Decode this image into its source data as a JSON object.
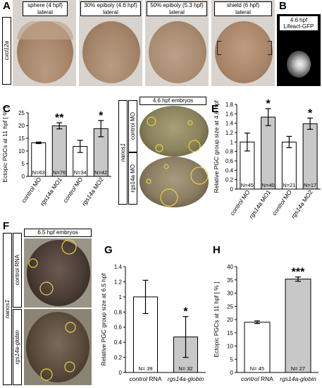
{
  "panels": {
    "A": {
      "label": "A",
      "side_label": "cxcl12a",
      "headers": [
        {
          "line1": "sphere (4 hpf)",
          "line2": "lateral"
        },
        {
          "line1": "30% epiboly (4.6 hpf)",
          "line2": "lateral"
        },
        {
          "line1": "50% epiboly (5.3 hpf)",
          "line2": "lateral"
        },
        {
          "line1": "shield (6 hpf)",
          "line2": "lateral"
        }
      ]
    },
    "B": {
      "label": "B",
      "header_line1": "4.6 hpf",
      "header_line2": "Lifeact-GFP"
    },
    "C": {
      "label": "C"
    },
    "D": {
      "label": "D",
      "header": "4.6 hpf embryos",
      "outer_label": "nanos1",
      "row_labels": [
        "control MO",
        "rgs14a MO"
      ]
    },
    "E": {
      "label": "E"
    },
    "F": {
      "label": "F",
      "header": "6.5 hpf embryos",
      "outer_label": "nanos1",
      "row_labels": [
        "control RNA",
        "rgs14a-globin"
      ]
    },
    "G": {
      "label": "G"
    },
    "H": {
      "label": "H"
    }
  },
  "colors": {
    "white_bar": "#ffffff",
    "grey_bar": "#c8c8c8",
    "circle": "#e6d23c"
  },
  "chart_data": [
    {
      "panel": "C",
      "type": "bar",
      "ylabel": "Ectopic PGCs at 11 hpf [ % ]",
      "ylim": [
        0,
        25
      ],
      "yticks": [
        0,
        5,
        10,
        15,
        20,
        25
      ],
      "categories": [
        "control MO",
        "rgs14a MO1",
        "control MO",
        "rgs14a MO2"
      ],
      "values": [
        13.2,
        19.9,
        11.8,
        18.8
      ],
      "errors": [
        0.3,
        1.2,
        2.4,
        3.2
      ],
      "fills": [
        "white",
        "grey",
        "white",
        "grey"
      ],
      "n_labels": [
        "N=63",
        "N=76",
        "N=34",
        "N=42"
      ],
      "sig": [
        "",
        "**",
        "",
        "*"
      ]
    },
    {
      "panel": "E",
      "type": "bar",
      "ylabel": "Relative PGC group size at 4.6 hpf",
      "ylim": [
        0,
        1.8
      ],
      "yticks": [
        0,
        0.2,
        0.4,
        0.6,
        0.8,
        1,
        1.2,
        1.4,
        1.6,
        1.8
      ],
      "categories": [
        "control MO",
        "rgs14a MO1",
        "control MO",
        "rgs14a MO2"
      ],
      "values": [
        1.0,
        1.53,
        1.0,
        1.39
      ],
      "errors": [
        0.19,
        0.18,
        0.12,
        0.12
      ],
      "fills": [
        "white",
        "grey",
        "white",
        "grey"
      ],
      "n_labels": [
        "N=45",
        "N=40",
        "N=21",
        "N=17"
      ],
      "sig": [
        "",
        "*",
        "",
        "*"
      ]
    },
    {
      "panel": "G",
      "type": "bar",
      "ylabel": "Relative PGC group size at 6.5 hpf",
      "ylim": [
        0,
        1.4
      ],
      "yticks": [
        0,
        0.2,
        0.4,
        0.6,
        0.8,
        1,
        1.2,
        1.4
      ],
      "categories": [
        "control RNA",
        "rgs14a-globin"
      ],
      "values": [
        1.0,
        0.47
      ],
      "errors": [
        0.22,
        0.27
      ],
      "fills": [
        "white",
        "grey"
      ],
      "n_labels": [
        "N= 39",
        "N= 32"
      ],
      "sig": [
        "",
        "*"
      ]
    },
    {
      "panel": "H",
      "type": "bar",
      "ylabel": "Ectopic PGCs at 11 hpf [ % ]",
      "ylim": [
        0,
        40
      ],
      "yticks": [
        0,
        5,
        10,
        15,
        20,
        25,
        30,
        35,
        40
      ],
      "categories": [
        "control RNA",
        "rgs14a-globin"
      ],
      "values": [
        19.0,
        35.3
      ],
      "errors": [
        0.5,
        0.8
      ],
      "fills": [
        "white",
        "grey"
      ],
      "n_labels": [
        "N= 45",
        "N= 27"
      ],
      "sig": [
        "",
        "***"
      ]
    }
  ]
}
